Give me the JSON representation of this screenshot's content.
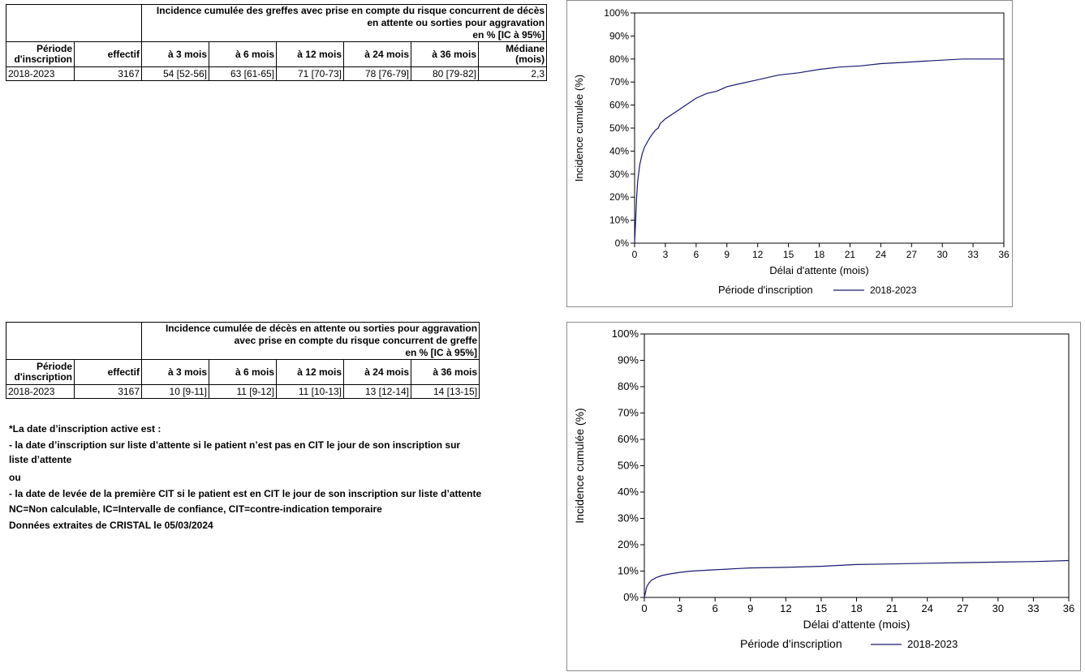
{
  "table1": {
    "title_lines": [
      "Incidence cumulée des greffes avec prise en compte du risque concurrent de décès",
      "en attente ou sorties pour aggravation",
      "en % [IC à 95%]"
    ],
    "col_period": [
      "Période",
      "d'inscription"
    ],
    "col_effectif": "effectif",
    "cols": [
      "à 3 mois",
      "à 6 mois",
      "à 12 mois",
      "à 24 mois",
      "à 36 mois"
    ],
    "col_median": [
      "Médiane",
      "(mois)"
    ],
    "row": {
      "period": "2018-2023",
      "effectif": "3167",
      "values": [
        "54 [52-56]",
        "63 [61-65]",
        "71 [70-73]",
        "78 [76-79]",
        "80 [79-82]"
      ],
      "median": "2,3"
    }
  },
  "table2": {
    "title_lines": [
      "Incidence cumulée de décès en attente ou sorties pour aggravation",
      "avec prise en compte du risque concurrent de greffe",
      "en % [IC à 95%]"
    ],
    "col_period": [
      "Période",
      "d'inscription"
    ],
    "col_effectif": "effectif",
    "cols": [
      "à 3 mois",
      "à 6 mois",
      "à 12 mois",
      "à 24 mois",
      "à 36 mois"
    ],
    "row": {
      "period": "2018-2023",
      "effectif": "3167",
      "values": [
        "10 [9-11]",
        "11 [9-12]",
        "11 [10-13]",
        "13 [12-14]",
        "14 [13-15]"
      ]
    }
  },
  "notes": [
    "*La date d’inscription active est :",
    "- la date d’inscription sur liste d’attente si le patient n’est pas en CIT le jour de son inscription sur liste d’attente",
    "ou",
    "- la date de levée de la première CIT si le patient est en CIT le jour de son inscription sur liste d’attente",
    "NC=Non calculable, IC=Intervalle de confiance, CIT=contre-indication temporaire",
    "Données extraites de CRISTAL le 05/03/2024"
  ],
  "chart_data": [
    {
      "type": "line",
      "title": "",
      "xlabel": "Délai d'attente (mois)",
      "ylabel": "Incidence cumulée (%)",
      "xlim": [
        0,
        36
      ],
      "ylim": [
        0,
        100
      ],
      "xticks": [
        "0",
        "3",
        "6",
        "9",
        "12",
        "15",
        "18",
        "21",
        "24",
        "27",
        "30",
        "33",
        "36"
      ],
      "yticks": [
        "0%",
        "10%",
        "20%",
        "30%",
        "40%",
        "50%",
        "60%",
        "70%",
        "80%",
        "90%",
        "100%"
      ],
      "legend_title": "Période d'inscription",
      "legend_position": "bottom",
      "grid": false,
      "series": [
        {
          "name": "2018-2023",
          "color": "#1a1a6e",
          "x": [
            0,
            0.1,
            0.2,
            0.3,
            0.5,
            0.75,
            1,
            1.5,
            2,
            2.3,
            2.5,
            3,
            4,
            5,
            6,
            7,
            8,
            9,
            10,
            12,
            14,
            16,
            18,
            20,
            22,
            24,
            26,
            28,
            30,
            32,
            34,
            36
          ],
          "y": [
            0,
            10,
            20,
            27,
            34,
            39,
            42,
            46,
            49,
            50,
            52,
            54,
            57,
            60,
            63,
            65,
            66,
            68,
            69,
            71,
            73,
            74,
            75.5,
            76.5,
            77,
            78,
            78.5,
            79,
            79.5,
            80,
            80,
            80
          ]
        }
      ]
    },
    {
      "type": "line",
      "title": "",
      "xlabel": "Délai d'attente (mois)",
      "ylabel": "Incidence cumulée (%)",
      "xlim": [
        0,
        36
      ],
      "ylim": [
        0,
        100
      ],
      "xticks": [
        "0",
        "3",
        "6",
        "9",
        "12",
        "15",
        "18",
        "21",
        "24",
        "27",
        "30",
        "33",
        "36"
      ],
      "yticks": [
        "0%",
        "10%",
        "20%",
        "30%",
        "40%",
        "50%",
        "60%",
        "70%",
        "80%",
        "90%",
        "100%"
      ],
      "legend_title": "Période d'inscription",
      "legend_position": "bottom",
      "grid": false,
      "series": [
        {
          "name": "2018-2023",
          "color": "#1a1a6e",
          "x": [
            0,
            0.1,
            0.2,
            0.4,
            0.6,
            1,
            1.5,
            2,
            3,
            4,
            6,
            8,
            9,
            12,
            15,
            18,
            21,
            24,
            27,
            30,
            33,
            36
          ],
          "y": [
            0,
            2,
            4,
            5.5,
            6.5,
            7.5,
            8.3,
            8.8,
            9.5,
            10,
            10.5,
            11,
            11.2,
            11.4,
            11.8,
            12.5,
            12.7,
            13,
            13.2,
            13.4,
            13.6,
            14
          ]
        }
      ]
    }
  ]
}
